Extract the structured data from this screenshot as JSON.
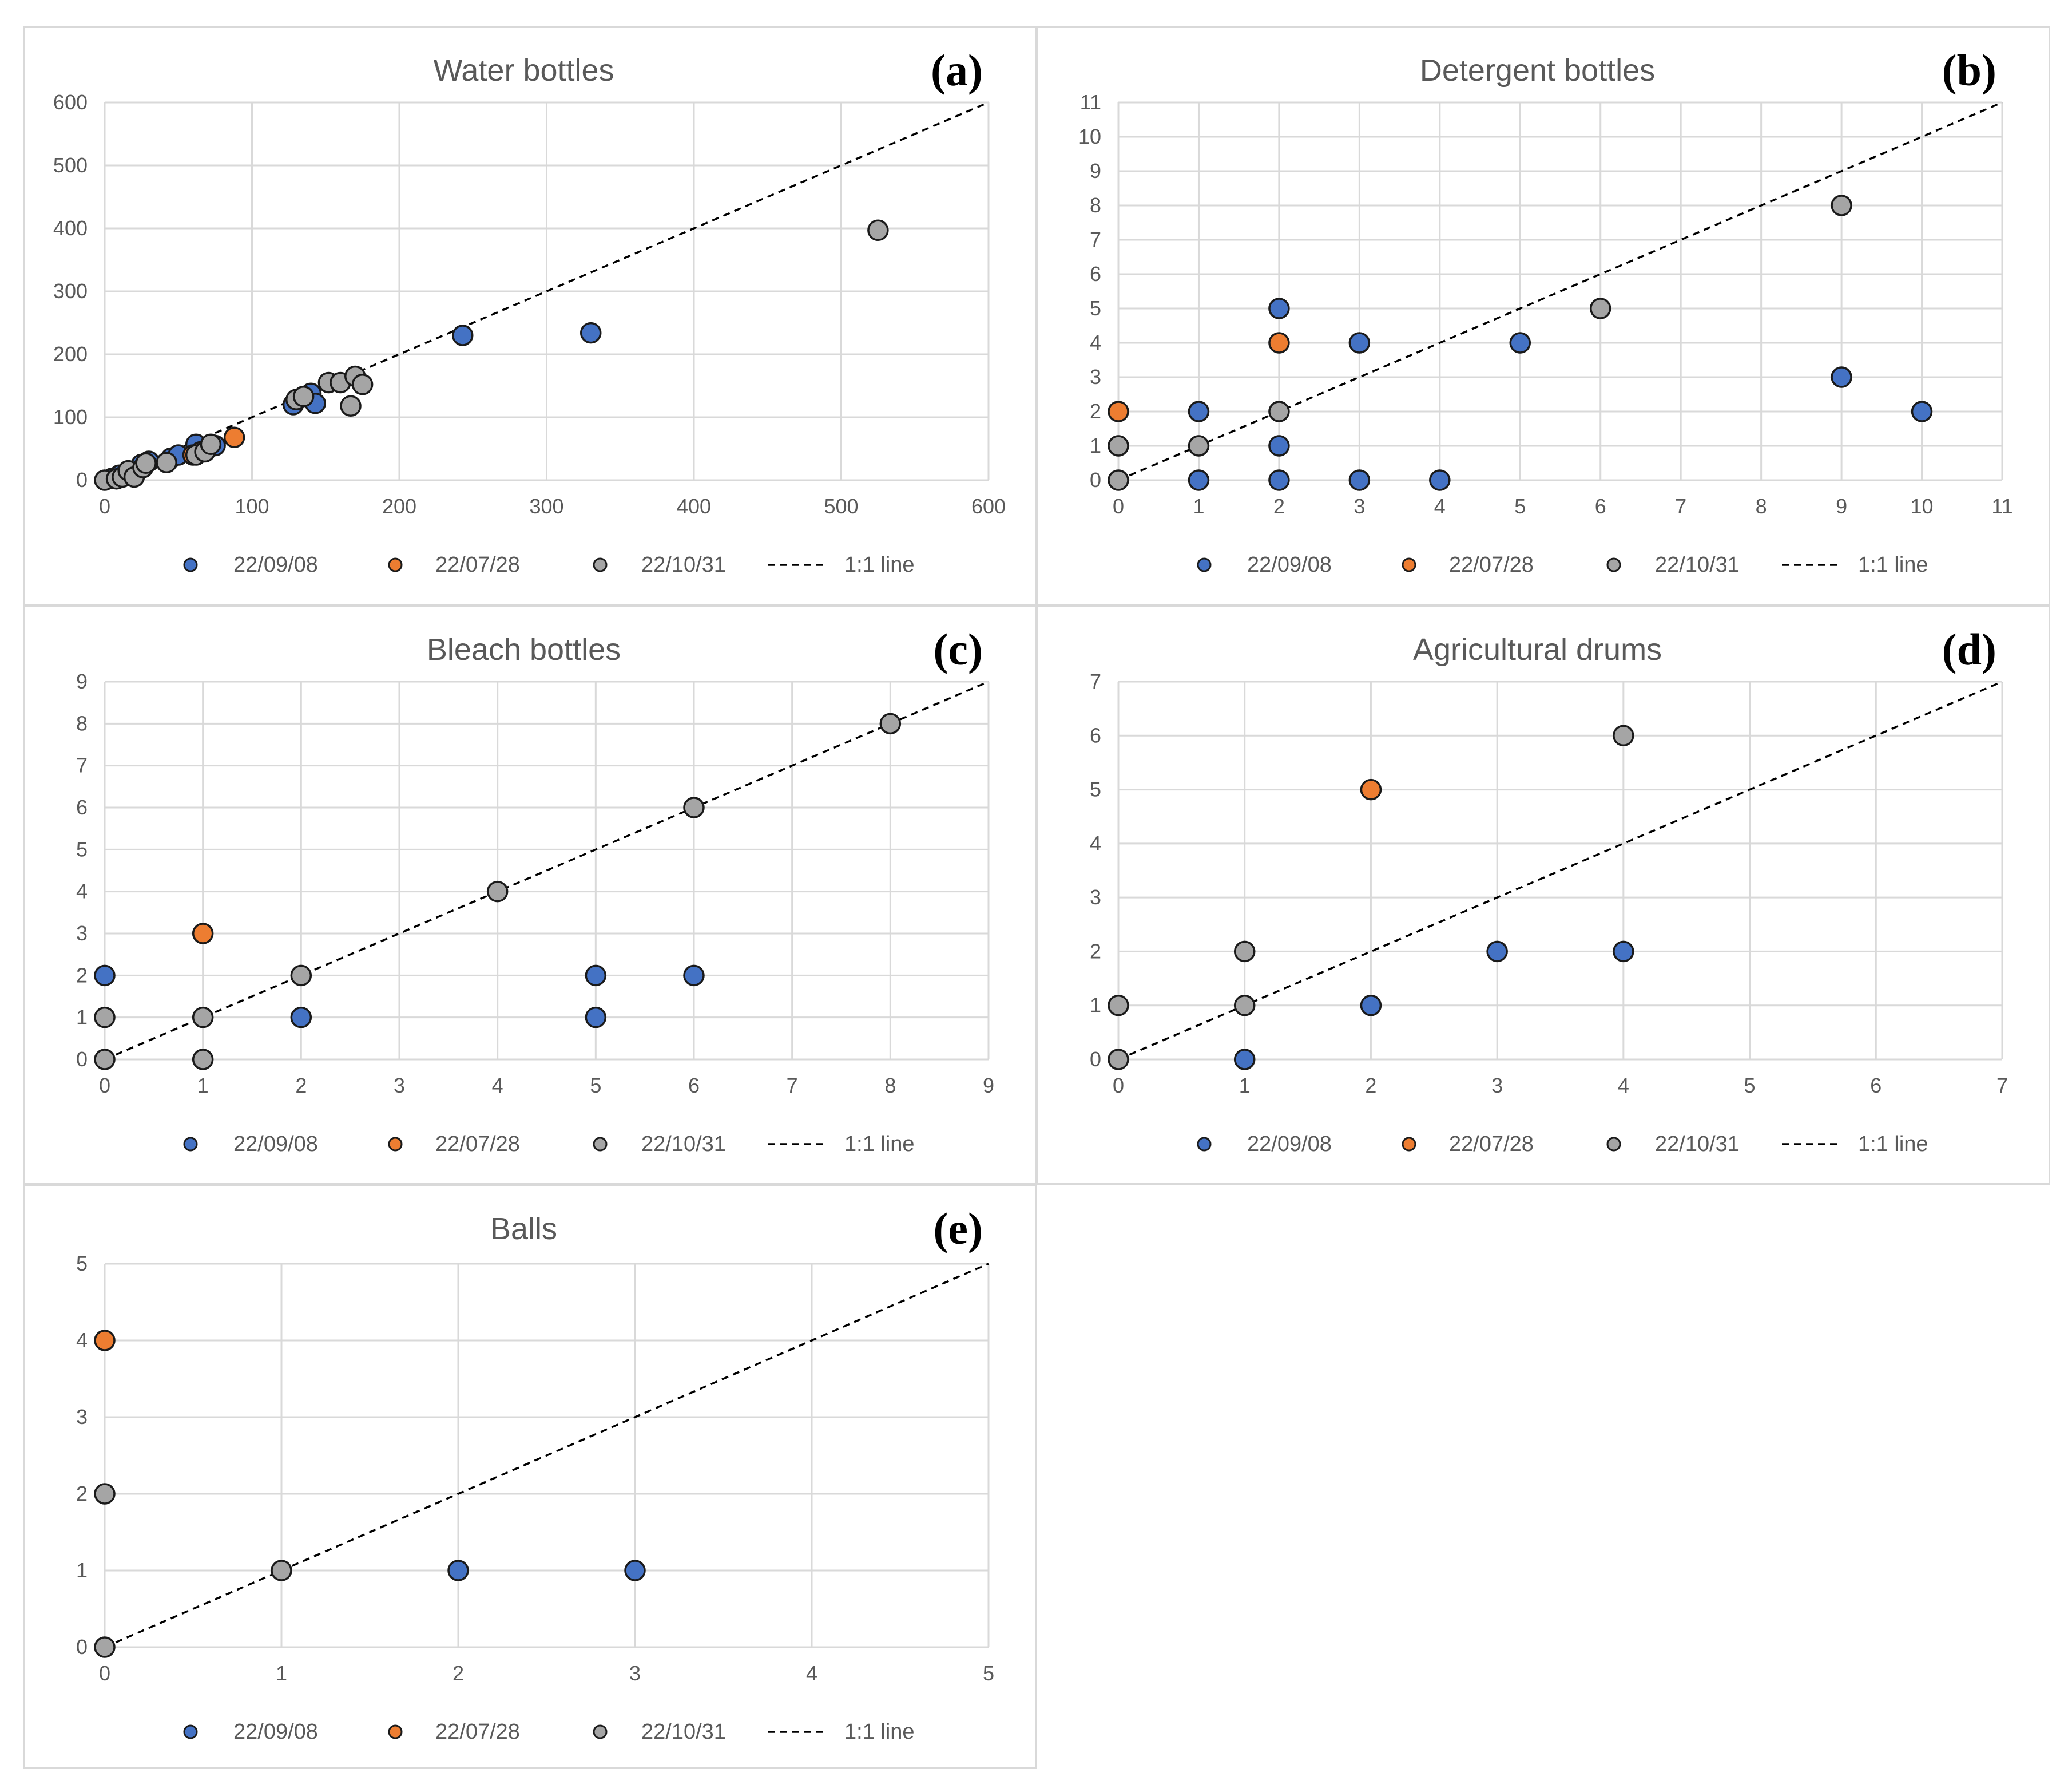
{
  "chart_data": [
    {
      "type": "scatter",
      "panel": "(a)",
      "title": "Water bottles",
      "xlim": [
        0,
        600
      ],
      "ylim": [
        0,
        600
      ],
      "xticks": [
        0,
        100,
        200,
        300,
        400,
        500,
        600
      ],
      "yticks": [
        0,
        100,
        200,
        300,
        400,
        500,
        600
      ],
      "grid": true,
      "legend": [
        "22/09/08",
        "22/07/28",
        "22/10/31",
        "1:1 line"
      ],
      "series": [
        {
          "name": "22/09/08",
          "color": "#4472c4",
          "points": [
            [
              5,
              3
            ],
            [
              10,
              8
            ],
            [
              15,
              12
            ],
            [
              25,
              25
            ],
            [
              30,
              30
            ],
            [
              45,
              35
            ],
            [
              50,
              40
            ],
            [
              62,
              57
            ],
            [
              75,
              55
            ],
            [
              128,
              120
            ],
            [
              140,
              138
            ],
            [
              143,
              122
            ],
            [
              243,
              230
            ],
            [
              330,
              234
            ]
          ]
        },
        {
          "name": "22/07/28",
          "color": "#ed7d31",
          "points": [
            [
              60,
              40
            ],
            [
              65,
              45
            ],
            [
              88,
              68
            ]
          ]
        },
        {
          "name": "22/10/31",
          "color": "#a5a5a5",
          "points": [
            [
              0,
              0
            ],
            [
              8,
              2
            ],
            [
              12,
              5
            ],
            [
              16,
              15
            ],
            [
              20,
              5
            ],
            [
              26,
              20
            ],
            [
              28,
              27
            ],
            [
              42,
              28
            ],
            [
              62,
              40
            ],
            [
              68,
              45
            ],
            [
              72,
              57
            ],
            [
              130,
              128
            ],
            [
              135,
              133
            ],
            [
              152,
              155
            ],
            [
              160,
              155
            ],
            [
              167,
              118
            ],
            [
              170,
              165
            ],
            [
              175,
              152
            ],
            [
              525,
              397
            ]
          ]
        }
      ]
    },
    {
      "type": "scatter",
      "panel": "(b)",
      "title": "Detergent bottles",
      "xlim": [
        0,
        11
      ],
      "ylim": [
        0,
        11
      ],
      "xticks": [
        0,
        1,
        2,
        3,
        4,
        5,
        6,
        7,
        8,
        9,
        10,
        11
      ],
      "yticks": [
        0,
        1,
        2,
        3,
        4,
        5,
        6,
        7,
        8,
        9,
        10,
        11
      ],
      "grid": true,
      "legend": [
        "22/09/08",
        "22/07/28",
        "22/10/31",
        "1:1 line"
      ],
      "series": [
        {
          "name": "22/09/08",
          "color": "#4472c4",
          "points": [
            [
              1,
              0
            ],
            [
              2,
              0
            ],
            [
              3,
              0
            ],
            [
              4,
              0
            ],
            [
              1,
              2
            ],
            [
              2,
              1
            ],
            [
              2,
              5
            ],
            [
              3,
              4
            ],
            [
              5,
              4
            ],
            [
              9,
              3
            ],
            [
              10,
              2
            ]
          ]
        },
        {
          "name": "22/07/28",
          "color": "#ed7d31",
          "points": [
            [
              0,
              2
            ],
            [
              2,
              4
            ]
          ]
        },
        {
          "name": "22/10/31",
          "color": "#a5a5a5",
          "points": [
            [
              0,
              0
            ],
            [
              0,
              1
            ],
            [
              1,
              1
            ],
            [
              2,
              2
            ],
            [
              6,
              5
            ],
            [
              9,
              8
            ]
          ]
        }
      ]
    },
    {
      "type": "scatter",
      "panel": "(c)",
      "title": "Bleach bottles",
      "xlim": [
        0,
        9
      ],
      "ylim": [
        0,
        9
      ],
      "xticks": [
        0,
        1,
        2,
        3,
        4,
        5,
        6,
        7,
        8,
        9
      ],
      "yticks": [
        0,
        1,
        2,
        3,
        4,
        5,
        6,
        7,
        8,
        9
      ],
      "grid": true,
      "legend": [
        "22/09/08",
        "22/07/28",
        "22/10/31",
        "1:1 line"
      ],
      "series": [
        {
          "name": "22/09/08",
          "color": "#4472c4",
          "points": [
            [
              0,
              2
            ],
            [
              2,
              1
            ],
            [
              5,
              1
            ],
            [
              5,
              2
            ],
            [
              6,
              2
            ]
          ]
        },
        {
          "name": "22/07/28",
          "color": "#ed7d31",
          "points": [
            [
              1,
              3
            ]
          ]
        },
        {
          "name": "22/10/31",
          "color": "#a5a5a5",
          "points": [
            [
              0,
              0
            ],
            [
              0,
              1
            ],
            [
              1,
              0
            ],
            [
              1,
              1
            ],
            [
              2,
              2
            ],
            [
              4,
              4
            ],
            [
              6,
              6
            ],
            [
              8,
              8
            ]
          ]
        }
      ]
    },
    {
      "type": "scatter",
      "panel": "(d)",
      "title": "Agricultural drums",
      "xlim": [
        0,
        7
      ],
      "ylim": [
        0,
        7
      ],
      "xticks": [
        0,
        1,
        2,
        3,
        4,
        5,
        6,
        7
      ],
      "yticks": [
        0,
        1,
        2,
        3,
        4,
        5,
        6,
        7
      ],
      "grid": true,
      "legend": [
        "22/09/08",
        "22/07/28",
        "22/10/31",
        "1:1 line"
      ],
      "series": [
        {
          "name": "22/09/08",
          "color": "#4472c4",
          "points": [
            [
              1,
              0
            ],
            [
              2,
              1
            ],
            [
              3,
              2
            ],
            [
              4,
              2
            ]
          ]
        },
        {
          "name": "22/07/28",
          "color": "#ed7d31",
          "points": [
            [
              2,
              5
            ]
          ]
        },
        {
          "name": "22/10/31",
          "color": "#a5a5a5",
          "points": [
            [
              0,
              0
            ],
            [
              0,
              1
            ],
            [
              1,
              1
            ],
            [
              1,
              2
            ],
            [
              4,
              6
            ]
          ]
        }
      ]
    },
    {
      "type": "scatter",
      "panel": "(e)",
      "title": "Balls",
      "xlim": [
        0,
        5
      ],
      "ylim": [
        0,
        5
      ],
      "xticks": [
        0,
        1,
        2,
        3,
        4,
        5
      ],
      "yticks": [
        0,
        1,
        2,
        3,
        4,
        5
      ],
      "grid": true,
      "legend": [
        "22/09/08",
        "22/07/28",
        "22/10/31",
        "1:1 line"
      ],
      "series": [
        {
          "name": "22/09/08",
          "color": "#4472c4",
          "points": [
            [
              2,
              1
            ],
            [
              3,
              1
            ]
          ]
        },
        {
          "name": "22/07/28",
          "color": "#ed7d31",
          "points": [
            [
              0,
              4
            ]
          ]
        },
        {
          "name": "22/10/31",
          "color": "#a5a5a5",
          "points": [
            [
              0,
              0
            ],
            [
              0,
              2
            ],
            [
              1,
              1
            ]
          ]
        }
      ]
    }
  ]
}
